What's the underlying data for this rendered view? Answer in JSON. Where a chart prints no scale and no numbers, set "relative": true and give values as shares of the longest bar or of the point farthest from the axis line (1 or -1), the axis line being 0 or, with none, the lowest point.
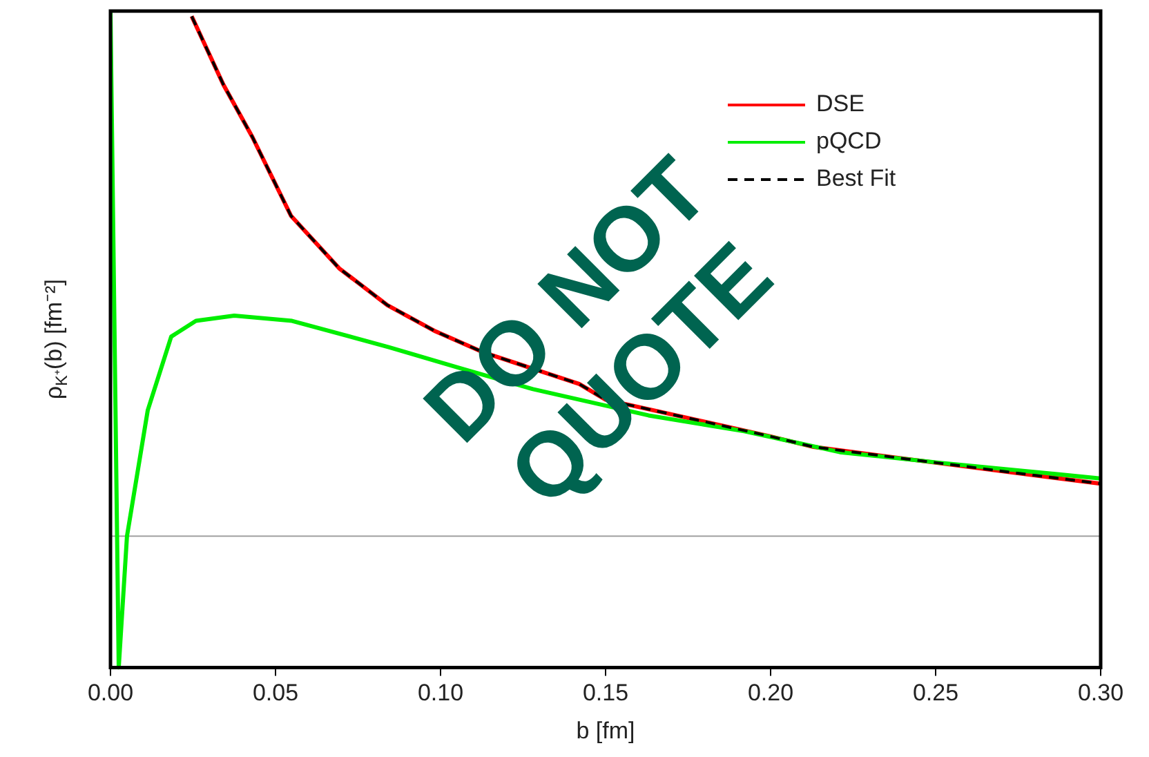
{
  "chart_data": {
    "type": "line",
    "relative": true,
    "xlabel": "b [fm]",
    "ylabel": "ρ$_{K⁺}$(b) [fm⁻²]",
    "xlim": [
      0,
      0.3
    ],
    "xticks": [
      {
        "value": 0,
        "label": "0.00"
      },
      {
        "value": 0.05,
        "label": "0.05"
      },
      {
        "value": 0.1,
        "label": "0.10"
      },
      {
        "value": 0.15,
        "label": "0.15"
      },
      {
        "value": 0.2,
        "label": "0.20"
      },
      {
        "value": 0.25,
        "label": "0.25"
      },
      {
        "value": 0.3,
        "label": "0.30"
      }
    ],
    "legend": "top right",
    "grid": false,
    "marker": "none",
    "ref_lines": [
      {
        "axis": "y",
        "value": 0,
        "color": "#a0a0a0"
      }
    ],
    "annotations": [
      "DO NOT QUOTE"
    ],
    "series": [
      {
        "name": "DSE",
        "color": "#ff0000",
        "line_style": "solid",
        "x": [
          0.0246,
          0.0342,
          0.043,
          0.0547,
          0.0693,
          0.0839,
          0.0985,
          0.113,
          0.142,
          0.15,
          0.2,
          0.213,
          0.25,
          0.3
        ],
        "values": [
          0.99,
          0.86,
          0.76,
          0.61,
          0.51,
          0.44,
          0.39,
          0.35,
          0.29,
          0.26,
          0.19,
          0.17,
          0.14,
          0.1
        ]
      },
      {
        "name": "pQCD",
        "color": "#00ee00",
        "line_style": "solid",
        "x": [
          0,
          0.0025,
          0.005,
          0.0113,
          0.0184,
          0.0259,
          0.0375,
          0.055,
          0.0843,
          0.106,
          0.128,
          0.163,
          0.192,
          0.221,
          0.251,
          0.3
        ],
        "values": [
          1,
          -0.25,
          0,
          0.24,
          0.38,
          0.41,
          0.42,
          0.41,
          0.36,
          0.32,
          0.28,
          0.23,
          0.2,
          0.16,
          0.14,
          0.11
        ]
      },
      {
        "name": "Best Fit",
        "color": "#000000",
        "line_style": "dashed",
        "x": [
          0.0246,
          0.0342,
          0.043,
          0.0547,
          0.0693,
          0.0839,
          0.0985,
          0.113,
          0.142,
          0.15,
          0.2,
          0.213,
          0.25,
          0.3
        ],
        "values": [
          0.99,
          0.86,
          0.76,
          0.61,
          0.51,
          0.44,
          0.39,
          0.35,
          0.29,
          0.26,
          0.19,
          0.17,
          0.14,
          0.1
        ]
      }
    ]
  }
}
